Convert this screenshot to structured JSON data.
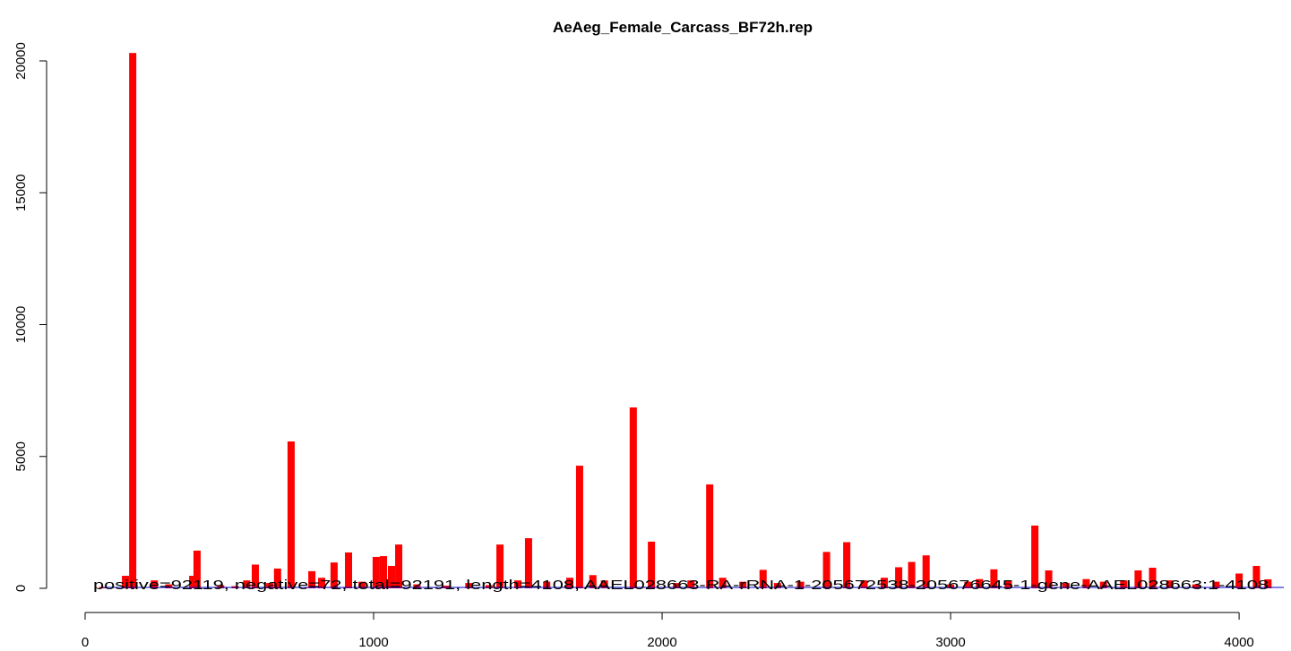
{
  "chart_data": {
    "type": "bar",
    "title": "AeAeg_Female_Carcass_BF72h.rep",
    "annotation": "positive=92119, negative=72, total=92191, length=4108, AAEL028663-RA-rRNA-1-205672538-205676645-1-gene-AAEL028663:1-4108",
    "color": "#ff0000",
    "x": [
      60,
      140,
      165,
      240,
      290,
      373,
      388,
      470,
      520,
      560,
      590,
      640,
      667,
      714,
      786,
      820,
      863,
      913,
      960,
      1009,
      1034,
      1062,
      1087,
      1150,
      1250,
      1330,
      1400,
      1438,
      1500,
      1537,
      1600,
      1680,
      1714,
      1760,
      1800,
      1900,
      1963,
      2050,
      2100,
      2165,
      2210,
      2280,
      2350,
      2400,
      2480,
      2570,
      2640,
      2700,
      2770,
      2820,
      2865,
      2915,
      3000,
      3060,
      3100,
      3150,
      3200,
      3292,
      3340,
      3400,
      3470,
      3530,
      3600,
      3650,
      3700,
      3760,
      3850,
      3920,
      4000,
      4060,
      4100
    ],
    "values": [
      50,
      475,
      20300,
      300,
      150,
      475,
      1430,
      120,
      80,
      300,
      900,
      200,
      750,
      5570,
      650,
      400,
      980,
      1360,
      250,
      1190,
      1220,
      850,
      1660,
      150,
      100,
      200,
      120,
      1660,
      300,
      1900,
      250,
      400,
      4650,
      500,
      300,
      6860,
      1770,
      200,
      300,
      3940,
      400,
      250,
      700,
      200,
      250,
      1380,
      1750,
      300,
      400,
      800,
      1000,
      1250,
      150,
      250,
      350,
      720,
      300,
      2380,
      680,
      200,
      350,
      250,
      300,
      680,
      780,
      300,
      150,
      250,
      560,
      850,
      340
    ],
    "xlim": [
      0,
      4155
    ],
    "xticks": [
      0,
      1000,
      2000,
      3000,
      4000
    ],
    "ylim": [
      0,
      20000
    ],
    "yticks": [
      0,
      5000,
      10000,
      15000,
      20000
    ]
  }
}
